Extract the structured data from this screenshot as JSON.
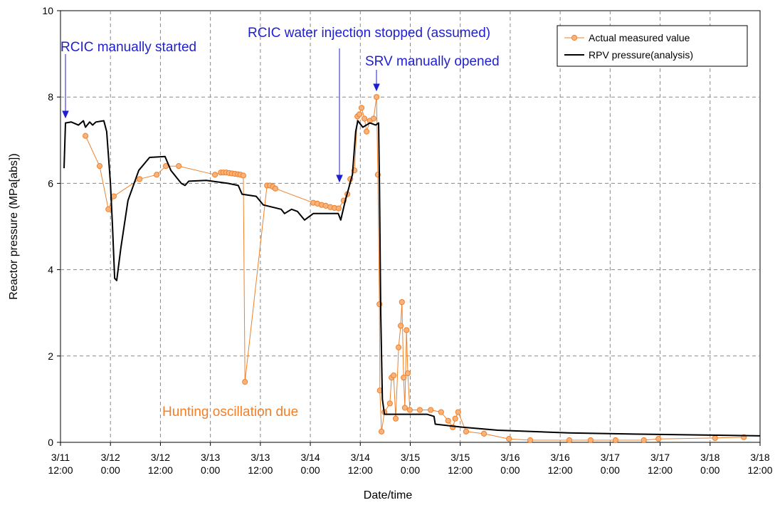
{
  "chart_data": {
    "type": "line",
    "xlabel": "Date/time",
    "ylabel": "Reactor pressure (MPa[abs])",
    "xlim": [
      0,
      168
    ],
    "xticks": [
      {
        "value": 0,
        "label": "3/11 12:00"
      },
      {
        "value": 12,
        "label": "3/12 0:00"
      },
      {
        "value": 24,
        "label": "3/12 12:00"
      },
      {
        "value": 36,
        "label": "3/13 0:00"
      },
      {
        "value": 48,
        "label": "3/13 12:00"
      },
      {
        "value": 60,
        "label": "3/14 0:00"
      },
      {
        "value": 72,
        "label": "3/14 12:00"
      },
      {
        "value": 84,
        "label": "3/15 0:00"
      },
      {
        "value": 96,
        "label": "3/15 12:00"
      },
      {
        "value": 108,
        "label": "3/16 0:00"
      },
      {
        "value": 120,
        "label": "3/16 12:00"
      },
      {
        "value": 132,
        "label": "3/17 0:00"
      },
      {
        "value": 144,
        "label": "3/17 12:00"
      },
      {
        "value": 156,
        "label": "3/18 0:00"
      },
      {
        "value": 168,
        "label": "3/18 12:00"
      }
    ],
    "ylim": [
      0,
      10
    ],
    "yticks": [
      0,
      2,
      4,
      6,
      8,
      10
    ],
    "grid": true,
    "legend": "upper right",
    "annotations": [
      {
        "text": "RCIC manually started",
        "color": "#1f1fd0"
      },
      {
        "text": "RCIC water injection stopped (assumed)",
        "color": "#1f1fd0"
      },
      {
        "text": "SRV manually opened",
        "color": "#1f1fd0"
      },
      {
        "text": "Hunting oscillation due",
        "color": "#f0802a"
      }
    ],
    "series": [
      {
        "name": "Actual measured value",
        "color": "#f0802a",
        "marker": "circle",
        "x": [
          6.0,
          9.4,
          11.5,
          12.8,
          19.0,
          23.1,
          25.3,
          28.4,
          37.1,
          38.5,
          39.1,
          39.8,
          40.5,
          41.2,
          41.9,
          42.6,
          43.2,
          43.9,
          44.3,
          49.6,
          50.3,
          51.0,
          51.6,
          60.7,
          61.7,
          62.7,
          63.7,
          64.8,
          65.8,
          66.8,
          68.0,
          68.9,
          69.6,
          70.6,
          71.3,
          71.8,
          72.3,
          73.0,
          73.5,
          74.3,
          75.2,
          75.9,
          76.2,
          76.6,
          76.7,
          77.1,
          77.8,
          79.1,
          79.5,
          80.0,
          80.5,
          81.2,
          81.7,
          82.0,
          82.4,
          82.7,
          83.1,
          83.4,
          83.9,
          86.3,
          88.9,
          91.4,
          93.1,
          94.2,
          94.8,
          95.5,
          97.4,
          101.7,
          107.7,
          112.8,
          122.2,
          127.3,
          133.3,
          140.1,
          143.6,
          157.2,
          164.1
        ],
        "values": [
          7.1,
          6.4,
          5.4,
          5.7,
          6.1,
          6.2,
          6.4,
          6.4,
          6.2,
          6.25,
          6.25,
          6.25,
          6.24,
          6.23,
          6.22,
          6.21,
          6.2,
          6.18,
          1.4,
          5.95,
          5.95,
          5.92,
          5.88,
          5.55,
          5.53,
          5.5,
          5.48,
          5.45,
          5.43,
          5.42,
          5.6,
          5.75,
          6.1,
          6.3,
          7.55,
          7.6,
          7.75,
          7.5,
          7.2,
          7.45,
          7.5,
          8.0,
          6.2,
          3.2,
          1.2,
          0.25,
          0.7,
          0.9,
          1.5,
          1.55,
          0.55,
          2.2,
          2.7,
          3.25,
          1.5,
          0.8,
          2.6,
          1.6,
          0.75,
          0.75,
          0.75,
          0.7,
          0.5,
          0.35,
          0.55,
          0.7,
          0.25,
          0.2,
          0.08,
          0.05,
          0.05,
          0.05,
          0.05,
          0.05,
          0.08,
          0.1,
          0.12
        ]
      },
      {
        "name": "RPV pressure(analysis)",
        "color": "#000000",
        "marker": "none",
        "x": [
          0.85,
          1.2,
          2.6,
          4.3,
          5.5,
          6.0,
          7.0,
          7.7,
          8.5,
          10.4,
          11.1,
          12.0,
          12.5,
          13.0,
          13.5,
          14.5,
          16.2,
          18.8,
          21.4,
          25.1,
          26.5,
          29.0,
          29.9,
          30.8,
          35.0,
          40.2,
          42.7,
          43.6,
          47.0,
          48.7,
          53.0,
          53.8,
          55.5,
          56.9,
          58.6,
          60.7,
          66.7,
          67.3,
          68.4,
          70.1,
          70.9,
          71.4,
          72.6,
          74.3,
          75.7,
          76.4,
          76.6,
          76.9,
          77.3,
          77.8,
          81.2,
          88.0,
          89.7,
          90.0,
          96.6,
          105.0,
          122.0,
          139.0,
          168.0
        ],
        "values": [
          6.35,
          7.4,
          7.42,
          7.35,
          7.45,
          7.3,
          7.42,
          7.35,
          7.42,
          7.45,
          7.2,
          6.0,
          5.0,
          3.8,
          3.75,
          4.5,
          5.6,
          6.3,
          6.6,
          6.62,
          6.3,
          6.0,
          5.95,
          6.05,
          6.07,
          6.0,
          5.95,
          5.75,
          5.7,
          5.5,
          5.4,
          5.3,
          5.4,
          5.35,
          5.15,
          5.3,
          5.3,
          5.15,
          5.6,
          6.2,
          7.2,
          7.45,
          7.3,
          7.4,
          7.35,
          7.4,
          6.0,
          3.0,
          1.0,
          0.65,
          0.65,
          0.65,
          0.6,
          0.42,
          0.35,
          0.28,
          0.22,
          0.19,
          0.15
        ]
      }
    ]
  }
}
